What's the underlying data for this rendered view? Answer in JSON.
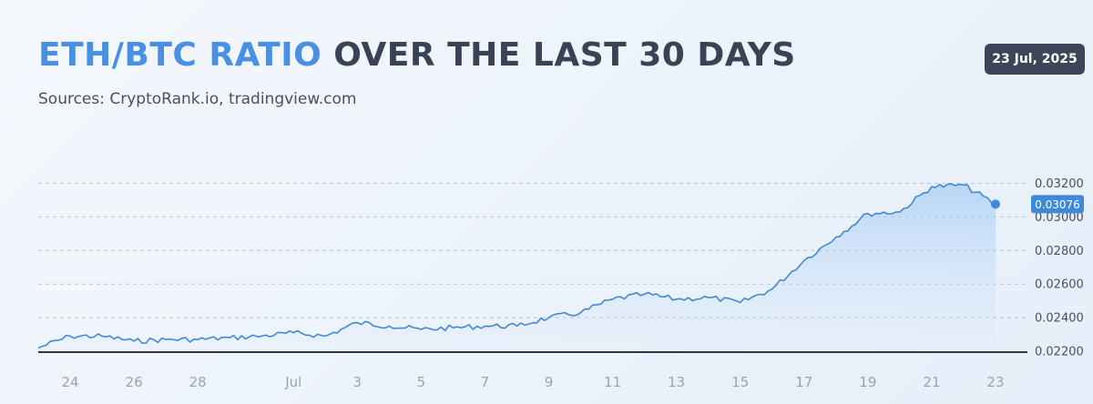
{
  "header": {
    "title_accent": "ETH/BTC RATIO",
    "title_rest": "OVER THE LAST 30 DAYS",
    "subtitle": "Sources: CryptoRank.io, tradingview.com",
    "date_badge": "23 Jul, 2025"
  },
  "colors": {
    "accent": "#4a90e2",
    "line": "#3f8ad8",
    "badge_bg": "#3d4658",
    "title": "#3a4255"
  },
  "chart_data": {
    "type": "area",
    "title": "ETH/BTC RATIO OVER THE LAST 30 DAYS",
    "xlabel": "",
    "ylabel": "",
    "ylim": [
      0.022,
      0.0321
    ],
    "y_ticks": [
      "0.03200",
      "0.03000",
      "0.02800",
      "0.02600",
      "0.02400",
      "0.02200"
    ],
    "x_tick_labels": [
      "24",
      "26",
      "28",
      "Jul",
      "3",
      "5",
      "7",
      "9",
      "11",
      "13",
      "15",
      "17",
      "19",
      "21",
      "23"
    ],
    "x_tick_dates": [
      "2025-06-24",
      "2025-06-26",
      "2025-06-28",
      "2025-07-01",
      "2025-07-03",
      "2025-07-05",
      "2025-07-07",
      "2025-07-09",
      "2025-07-11",
      "2025-07-13",
      "2025-07-15",
      "2025-07-17",
      "2025-07-19",
      "2025-07-21",
      "2025-07-23"
    ],
    "x_range": [
      "2025-06-23",
      "2025-07-24"
    ],
    "last_value": "0.03076",
    "grid": true,
    "legend": "none",
    "series": [
      {
        "x": [
          "2025-06-23",
          "2025-06-24",
          "2025-06-25",
          "2025-06-26",
          "2025-06-27",
          "2025-06-28",
          "2025-06-29",
          "2025-06-30",
          "2025-07-01",
          "2025-07-02",
          "2025-07-03",
          "2025-07-04",
          "2025-07-05",
          "2025-07-06",
          "2025-07-07",
          "2025-07-08",
          "2025-07-09",
          "2025-07-10",
          "2025-07-11",
          "2025-07-12",
          "2025-07-13",
          "2025-07-14",
          "2025-07-15",
          "2025-07-16",
          "2025-07-17",
          "2025-07-18",
          "2025-07-19",
          "2025-07-20",
          "2025-07-21",
          "2025-07-22",
          "2025-07-23"
        ],
        "values": [
          0.0222,
          0.0229,
          0.0229,
          0.0226,
          0.0227,
          0.0227,
          0.0228,
          0.0229,
          0.0231,
          0.0229,
          0.0237,
          0.0235,
          0.0233,
          0.0234,
          0.0235,
          0.0235,
          0.024,
          0.0243,
          0.0251,
          0.0254,
          0.0251,
          0.0252,
          0.0249,
          0.0257,
          0.0274,
          0.0288,
          0.0302,
          0.0303,
          0.0318,
          0.0319,
          0.03076
        ]
      }
    ]
  }
}
